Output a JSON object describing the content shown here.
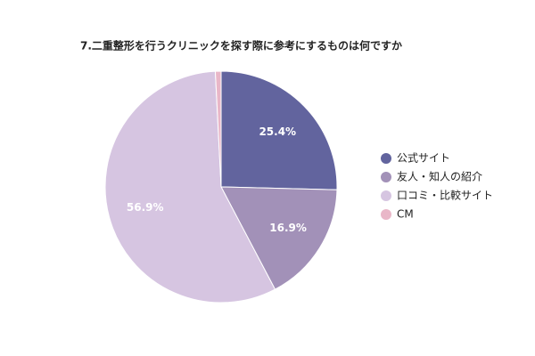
{
  "chart_data": {
    "type": "pie",
    "title": "7.二重整形を行うクリニックを探す際に参考にするものは何ですか",
    "categories": [
      "公式サイト",
      "友人・知人の紹介",
      "口コミ・比較サイト",
      "CM"
    ],
    "values": [
      25.4,
      16.9,
      56.9,
      0.8
    ],
    "value_labels": [
      "25.4%",
      "16.9%",
      "56.9%",
      null
    ],
    "colors": [
      "#62649e",
      "#a291b8",
      "#d6c5e1",
      "#e9b7c8"
    ],
    "legend": "right"
  }
}
